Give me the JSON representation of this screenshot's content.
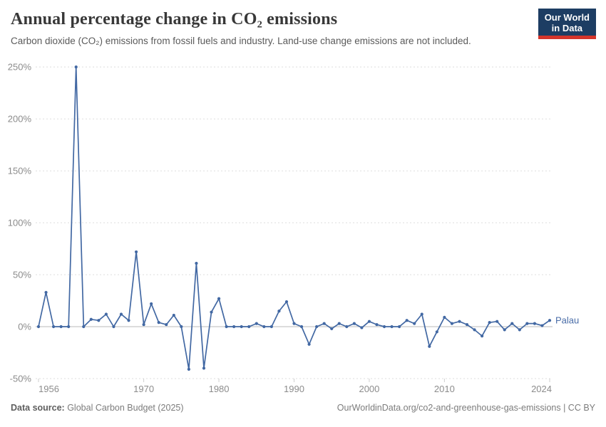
{
  "header": {
    "title": "Annual percentage change in CO₂ emissions",
    "subtitle": "Carbon dioxide (CO₂) emissions from fossil fuels and industry. Land-use change emissions are not included.",
    "logo": {
      "line1": "Our World",
      "line2": "in Data",
      "bg_color": "#1d3d63",
      "bar_color": "#d5352b"
    }
  },
  "footer": {
    "source_label": "Data source:",
    "source_text": " Global Carbon Budget (2025)",
    "right_text": "OurWorldinData.org/co2-and-greenhouse-gas-emissions | CC BY"
  },
  "chart_data": {
    "type": "line",
    "title": "Annual percentage change in CO₂ emissions",
    "entity": "Palau",
    "unit": "%",
    "xlabel": "",
    "ylabel": "",
    "ylim": [
      -50,
      250
    ],
    "y_ticks": [
      -50,
      0,
      50,
      100,
      150,
      200,
      250
    ],
    "x_ticks": [
      1956,
      1970,
      1980,
      1990,
      2000,
      2010,
      2024
    ],
    "grid": true,
    "legend_position": "end-of-line",
    "line_color": "#4268a3",
    "label_color": "#4a6da8",
    "x": [
      1956,
      1957,
      1958,
      1959,
      1960,
      1961,
      1962,
      1963,
      1964,
      1965,
      1966,
      1967,
      1968,
      1969,
      1970,
      1971,
      1972,
      1973,
      1974,
      1975,
      1976,
      1977,
      1978,
      1979,
      1980,
      1981,
      1982,
      1983,
      1984,
      1985,
      1986,
      1987,
      1988,
      1989,
      1990,
      1991,
      1992,
      1993,
      1994,
      1995,
      1996,
      1997,
      1998,
      1999,
      2000,
      2001,
      2002,
      2003,
      2004,
      2005,
      2006,
      2007,
      2008,
      2009,
      2010,
      2011,
      2012,
      2013,
      2014,
      2015,
      2016,
      2017,
      2018,
      2019,
      2020,
      2021,
      2022,
      2023,
      2024
    ],
    "values": [
      0,
      33,
      0,
      0,
      0,
      250,
      0,
      7,
      6,
      12,
      0,
      12,
      6,
      72,
      2,
      22,
      4,
      2,
      11,
      0,
      -41,
      61,
      -40,
      14,
      27,
      0,
      0,
      0,
      0,
      3,
      0,
      0,
      15,
      24,
      3,
      0,
      -17,
      0,
      3,
      -2,
      3,
      0,
      3,
      -1,
      5,
      2,
      0,
      0,
      0,
      6,
      3,
      12,
      -19,
      -5,
      9,
      3,
      5,
      2,
      -3,
      -9,
      4,
      5,
      -3,
      3,
      -3,
      3,
      3,
      1,
      6
    ]
  }
}
